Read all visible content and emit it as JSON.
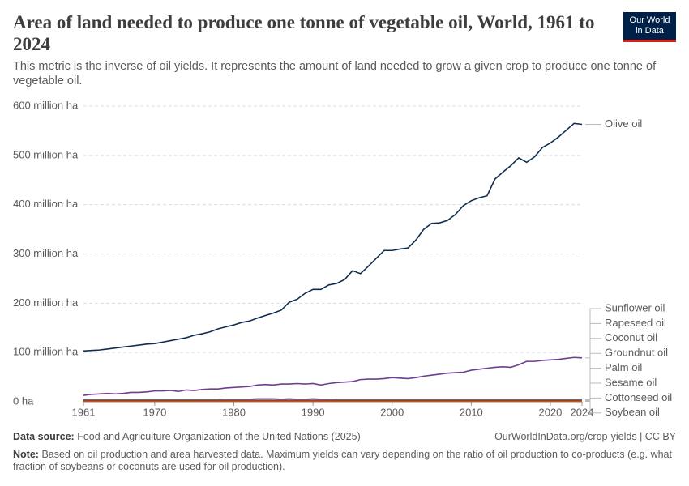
{
  "chart_data": {
    "type": "line",
    "title": "Area of land needed to produce one tonne of vegetable oil, World, 1961 to 2024",
    "subtitle": "This metric is the inverse of oil yields. It represents the amount of land needed to grow a given crop to produce one tonne of vegetable oil.",
    "logo": [
      "Our World",
      "in Data"
    ],
    "source": {
      "label": "Data source:",
      "text": "Food and Agriculture Organization of the United Nations (2025)"
    },
    "url": "OurWorldInData.org/crop-yields | CC BY",
    "note": {
      "label": "Note:",
      "text": "Based on oil production and area harvested data. Maximum yields can vary depending on the ratio of oil production to co-products (e.g. what fraction of soybeans or coconuts are used for oil production)."
    },
    "x": [
      1961,
      1962,
      1963,
      1964,
      1965,
      1966,
      1967,
      1968,
      1969,
      1970,
      1971,
      1972,
      1973,
      1974,
      1975,
      1976,
      1977,
      1978,
      1979,
      1980,
      1981,
      1982,
      1983,
      1984,
      1985,
      1986,
      1987,
      1988,
      1989,
      1990,
      1991,
      1992,
      1993,
      1994,
      1995,
      1996,
      1997,
      1998,
      1999,
      2000,
      2001,
      2002,
      2003,
      2004,
      2005,
      2006,
      2007,
      2008,
      2009,
      2010,
      2011,
      2012,
      2013,
      2014,
      2015,
      2016,
      2017,
      2018,
      2019,
      2020,
      2021,
      2022,
      2023,
      2024
    ],
    "xlim": [
      1961,
      2024
    ],
    "xticks": [
      1961,
      1970,
      1980,
      1990,
      2000,
      2010,
      2020,
      2024
    ],
    "ylim": [
      0,
      600
    ],
    "yticks": [
      {
        "value": 0,
        "label": "0 ha"
      },
      {
        "value": 100,
        "label": "100 million ha"
      },
      {
        "value": 200,
        "label": "200 million ha"
      },
      {
        "value": 300,
        "label": "300 million ha"
      },
      {
        "value": 400,
        "label": "400 million ha"
      },
      {
        "value": 500,
        "label": "500 million ha"
      },
      {
        "value": 600,
        "label": "600 million ha"
      }
    ],
    "grid": true,
    "series": [
      {
        "name": "Olive oil",
        "color": "#102d4f",
        "values": [
          103,
          104,
          105,
          107,
          109,
          111,
          113,
          115,
          117,
          118,
          121,
          124,
          127,
          130,
          135,
          138,
          142,
          148,
          152,
          156,
          161,
          164,
          170,
          175,
          180,
          186,
          202,
          208,
          220,
          228,
          228,
          237,
          240,
          248,
          266,
          260,
          275,
          291,
          307,
          307,
          310,
          312,
          328,
          350,
          362,
          363,
          368,
          380,
          398,
          408,
          414,
          418,
          452,
          466,
          479,
          495,
          486,
          497,
          516,
          525,
          537,
          551,
          565,
          563
        ]
      },
      {
        "name": "Sunflower oil",
        "color": "#6d3e91",
        "values": [
          13,
          15,
          16,
          17,
          16,
          17,
          19,
          19,
          20,
          22,
          22,
          23,
          21,
          24,
          23,
          25,
          26,
          26,
          28,
          29,
          30,
          31,
          34,
          35,
          34,
          36,
          36,
          37,
          36,
          37,
          34,
          37,
          39,
          40,
          41,
          45,
          46,
          46,
          47,
          49,
          48,
          47,
          49,
          52,
          54,
          56,
          58,
          59,
          60,
          64,
          66,
          68,
          70,
          71,
          70,
          75,
          82,
          82,
          84,
          85,
          86,
          88,
          90,
          89
        ]
      },
      {
        "name": "Rapeseed oil",
        "color": "#a2559c",
        "values": [
          4,
          4,
          4,
          4,
          4,
          4,
          4,
          4,
          4,
          4,
          4,
          4,
          4,
          4,
          4,
          4,
          4,
          4,
          5,
          5,
          5,
          5,
          6,
          6,
          6,
          5,
          6,
          5,
          5,
          6,
          5,
          5,
          4,
          4,
          4,
          4,
          4,
          4,
          4,
          4,
          4,
          4,
          4,
          4,
          4,
          4,
          4,
          4,
          4,
          4,
          4,
          4,
          4,
          4,
          4,
          4,
          4,
          4,
          4,
          4,
          4,
          4,
          4,
          4
        ]
      },
      {
        "name": "Coconut oil",
        "color": "#4c6a9c",
        "values": [
          2,
          2,
          2,
          2,
          2,
          2,
          2,
          2,
          2,
          2,
          2,
          2,
          2,
          2,
          2,
          2,
          2,
          2,
          2,
          2,
          2,
          2,
          2,
          2,
          2,
          2,
          2,
          2,
          2,
          2,
          2,
          2,
          2,
          2,
          2,
          2,
          2,
          2,
          2,
          2,
          2,
          2,
          2,
          2,
          2,
          2,
          2,
          2,
          2,
          2,
          2,
          2,
          2,
          2,
          2,
          2,
          2,
          2,
          2,
          2,
          2,
          2,
          2,
          2
        ]
      },
      {
        "name": "Groundnut oil",
        "color": "#b13507",
        "values": [
          3,
          3,
          3,
          3,
          3,
          3,
          3,
          3,
          3,
          3,
          3,
          3,
          3,
          3,
          3,
          3,
          3,
          3,
          3,
          3,
          3,
          3,
          3,
          3,
          3,
          3,
          3,
          3,
          3,
          3,
          3,
          3,
          3,
          3,
          3,
          3,
          3,
          3,
          3,
          3,
          3,
          3,
          3,
          3,
          3,
          3,
          3,
          3,
          3,
          3,
          3,
          3,
          3,
          3,
          3,
          3,
          3,
          3,
          3,
          3,
          3,
          3,
          3,
          3
        ]
      },
      {
        "name": "Palm oil",
        "color": "#bc8e5a",
        "values": [
          1,
          1,
          1,
          1,
          1,
          1,
          1,
          1,
          1,
          1,
          1,
          1,
          1,
          1,
          1,
          1,
          1,
          1,
          1,
          1,
          1,
          1,
          1,
          1,
          1,
          1,
          1,
          1,
          1,
          1,
          1,
          1,
          1,
          1,
          1,
          1,
          1,
          1,
          1,
          1,
          1,
          1,
          1,
          1,
          1,
          1,
          1,
          1,
          1,
          1,
          1,
          1,
          1,
          1,
          1,
          1,
          1,
          1,
          1,
          1,
          1,
          1,
          1,
          1
        ]
      },
      {
        "name": "Sesame oil",
        "color": "#2c8465",
        "values": [
          3,
          3,
          3,
          3,
          3,
          3,
          3,
          3,
          3,
          3,
          3,
          3,
          3,
          3,
          3,
          3,
          3,
          3,
          3,
          3,
          3,
          3,
          3,
          3,
          3,
          3,
          3,
          3,
          3,
          3,
          3,
          3,
          3,
          3,
          3,
          3,
          3,
          3,
          3,
          3,
          3,
          3,
          3,
          3,
          3,
          3,
          3,
          3,
          3,
          3,
          3,
          3,
          3,
          3,
          3,
          3,
          3,
          3,
          3,
          3,
          3,
          3,
          3,
          3
        ]
      },
      {
        "name": "Cottonseed oil",
        "color": "#883039",
        "values": [
          2,
          2,
          2,
          2,
          2,
          2,
          2,
          2,
          2,
          2,
          2,
          2,
          2,
          2,
          2,
          2,
          2,
          2,
          2,
          2,
          2,
          2,
          2,
          2,
          2,
          2,
          2,
          2,
          2,
          2,
          2,
          2,
          2,
          2,
          2,
          2,
          2,
          2,
          2,
          2,
          2,
          2,
          2,
          2,
          2,
          2,
          2,
          2,
          2,
          2,
          2,
          2,
          2,
          2,
          2,
          2,
          2,
          2,
          2,
          2,
          2,
          2,
          2,
          2
        ]
      },
      {
        "name": "Soybean oil",
        "color": "#c05917",
        "values": [
          1,
          1,
          1,
          1,
          1,
          1,
          1,
          1,
          1,
          1,
          1,
          1,
          1,
          1,
          1,
          1,
          1,
          1,
          1,
          1,
          1,
          1,
          1,
          1,
          1,
          1,
          1,
          1,
          1,
          1,
          1,
          1,
          1,
          1,
          1,
          1,
          1,
          1,
          1,
          1,
          1,
          1,
          1,
          1,
          1,
          1,
          1,
          1,
          1,
          1,
          1,
          1,
          1,
          1,
          1,
          1,
          1,
          1,
          1,
          1,
          1,
          1,
          1,
          1
        ]
      }
    ]
  }
}
